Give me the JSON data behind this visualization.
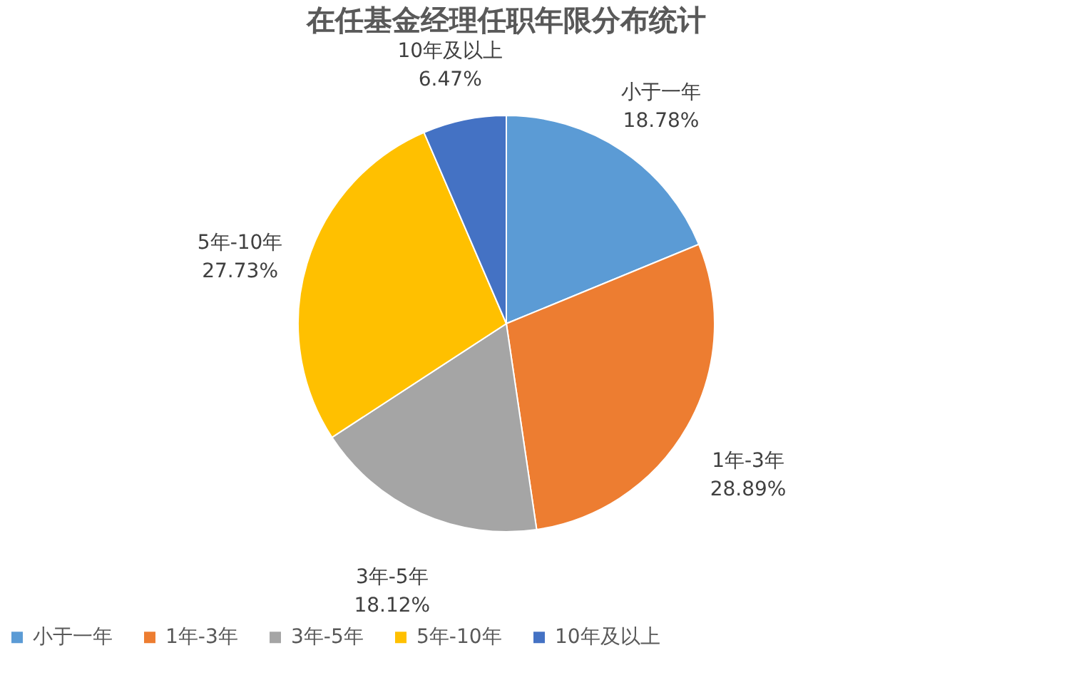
{
  "chart_data": {
    "type": "pie",
    "title": "在任基金经理任职年限分布统计",
    "categories": [
      "小于一年",
      "1年-3年",
      "3年-5年",
      "5年-10年",
      "10年及以上"
    ],
    "values": [
      18.78,
      28.89,
      18.12,
      27.73,
      6.47
    ],
    "value_labels": [
      "18.78%",
      "28.89%",
      "18.12%",
      "27.73%",
      "6.47%"
    ],
    "colors": [
      "#5b9bd5",
      "#ed7d31",
      "#a5a5a5",
      "#ffc000",
      "#4472c4"
    ],
    "legend": "bottom"
  }
}
